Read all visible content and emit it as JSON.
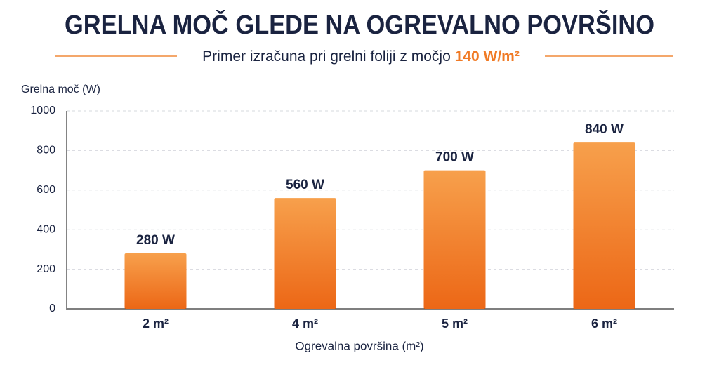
{
  "chart_data": {
    "type": "bar",
    "title": "GRELNA MOČ GLEDE NA OGREVALNO POVRŠINO",
    "subtitle": "Primer izračuna pri grelni foliji z močjo",
    "subtitle_highlight": "140 W/m²",
    "y_label": "Grelna moč (W)",
    "x_label": "Ogrevalna površina (m²)",
    "categories": [
      "2 m²",
      "4 m²",
      "5 m²",
      "6 m²"
    ],
    "values": [
      280,
      560,
      700,
      840
    ],
    "value_labels": [
      "280 W",
      "560 W",
      "700 W",
      "840 W"
    ],
    "color": "#f07a25",
    "ylim": [
      0,
      1000
    ],
    "yticks": [
      0,
      200,
      400,
      600,
      800,
      1000
    ],
    "grid": true
  }
}
